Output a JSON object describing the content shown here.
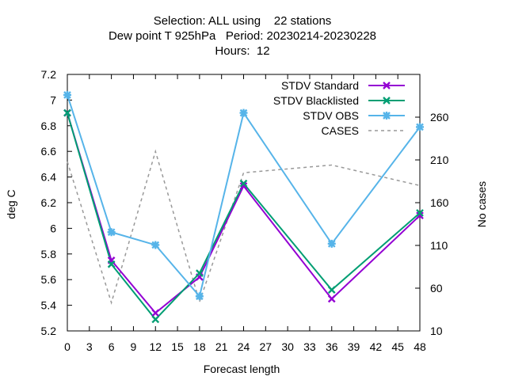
{
  "chart_data": {
    "type": "line",
    "title_lines": [
      "Selection: ALL using    22 stations",
      "Dew point T 925hPa   Period: 20230214-20230228",
      "Hours:  12"
    ],
    "xlabel": "Forecast length",
    "ylabel": "deg C",
    "y2label": "No cases",
    "xlim": [
      0,
      48
    ],
    "ylim": [
      5.2,
      7.2
    ],
    "y2lim": [
      10,
      310
    ],
    "x_ticks": [
      "0",
      "3",
      "6",
      "9",
      "12",
      "15",
      "18",
      "21",
      "24",
      "27",
      "30",
      "33",
      "36",
      "39",
      "42",
      "45",
      "48"
    ],
    "y_ticks": [
      "5.2",
      "5.4",
      "5.6",
      "5.8",
      "6",
      "6.2",
      "6.4",
      "6.6",
      "6.8",
      "7",
      "7.2"
    ],
    "y2_ticks": [
      "10",
      "60",
      "110",
      "160",
      "210",
      "260"
    ],
    "x": [
      0,
      6,
      12,
      18,
      24,
      36,
      48
    ],
    "series": [
      {
        "name": "STDV Standard",
        "axis": "y",
        "color": "#9400d3",
        "marker": "x",
        "values": [
          6.9,
          5.75,
          5.34,
          5.62,
          6.33,
          5.45,
          6.1
        ]
      },
      {
        "name": "STDV Blacklisted",
        "axis": "y",
        "color": "#009e73",
        "marker": "x",
        "values": [
          6.9,
          5.72,
          5.29,
          5.65,
          6.35,
          5.52,
          6.12
        ]
      },
      {
        "name": "STDV OBS",
        "axis": "y",
        "color": "#56b4e9",
        "marker": "star",
        "values": [
          7.04,
          5.97,
          5.87,
          5.47,
          6.9,
          5.88,
          6.79
        ]
      },
      {
        "name": "CASES",
        "axis": "y2",
        "color": "#999999",
        "dashed": true,
        "values": [
          208,
          43,
          220,
          44,
          195,
          204,
          180
        ]
      }
    ],
    "grid": false,
    "legend_position": "top-right"
  }
}
